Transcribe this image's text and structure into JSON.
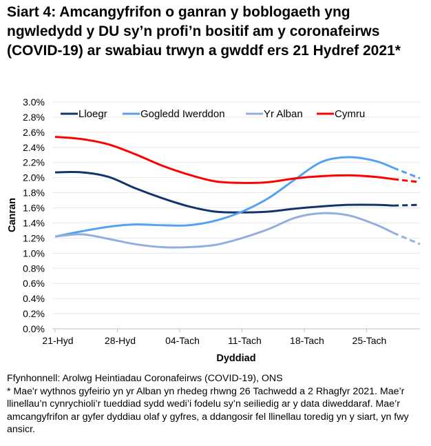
{
  "title": "Siart 4: Amcangyfrifon o ganran y boblogaeth yng ngwledydd y DU sy’n profi’n bositif am y coronafeirws (COVID-19) ar swabiau trwyn a gwddf ers 21 Hydref 2021*",
  "notes": [
    "Ffynhonnell: Arolwg Heintiadau Coronafeirws (COVID-19), ONS",
    "* Mae'r wythnos gyfeirio yn yr Alban yn rhedeg rhwng 26 Tachwedd a 2 Rhagfyr 2021. Mae’r llinellau’n cynrychioli’r tueddiad sydd wedi’i fodelu sy’n seiliedig ar y data diweddaraf. Mae’r amcangyfrifon ar gyfer dyddiau olaf y gyfres, a ddangosir fel llinellau toredig yn y siart, yn fwy ansicr."
  ],
  "chart_data": {
    "type": "line",
    "title": "Siart 4",
    "xlabel": "Dyddiad",
    "ylabel": "Canran",
    "ylim": [
      0,
      3.0
    ],
    "yticks": [
      "0.0%",
      "0.2%",
      "0.4%",
      "0.6%",
      "0.8%",
      "1.0%",
      "1.2%",
      "1.4%",
      "1.6%",
      "1.8%",
      "2.0%",
      "2.2%",
      "2.4%",
      "2.6%",
      "2.8%",
      "3.0%"
    ],
    "xticks": [
      {
        "label": "21-Hyd",
        "day": 0
      },
      {
        "label": "28-Hyd",
        "day": 7
      },
      {
        "label": "04-Tach",
        "day": 14
      },
      {
        "label": "11-Tach",
        "day": 21
      },
      {
        "label": "18-Tach",
        "day": 28
      },
      {
        "label": "25-Tach",
        "day": 35
      }
    ],
    "xlim_days": [
      0,
      41
    ],
    "dashed_from_day": 38,
    "legend_position": "top",
    "x_days": [
      0,
      3,
      6,
      9,
      12,
      15,
      18,
      21,
      24,
      27,
      30,
      33,
      36,
      38,
      41
    ],
    "series": [
      {
        "name": "Lloegr",
        "color": "#12336b",
        "values": [
          2.07,
          2.07,
          2.01,
          1.86,
          1.73,
          1.62,
          1.55,
          1.54,
          1.55,
          1.59,
          1.62,
          1.64,
          1.64,
          1.63,
          1.64
        ]
      },
      {
        "name": "Gogledd Iwerddon",
        "color": "#56a0f0",
        "values": [
          1.22,
          1.29,
          1.35,
          1.38,
          1.37,
          1.37,
          1.43,
          1.55,
          1.73,
          1.98,
          2.21,
          2.27,
          2.22,
          2.13,
          1.99
        ]
      },
      {
        "name": "Yr Alban",
        "color": "#93aede",
        "values": [
          1.22,
          1.25,
          1.19,
          1.12,
          1.08,
          1.08,
          1.11,
          1.2,
          1.32,
          1.47,
          1.53,
          1.5,
          1.38,
          1.27,
          1.12
        ]
      },
      {
        "name": "Cymru",
        "color": "#ff0000",
        "values": [
          2.54,
          2.51,
          2.44,
          2.31,
          2.16,
          2.04,
          1.95,
          1.93,
          1.94,
          1.99,
          2.02,
          2.03,
          2.01,
          1.98,
          1.94
        ]
      }
    ]
  }
}
